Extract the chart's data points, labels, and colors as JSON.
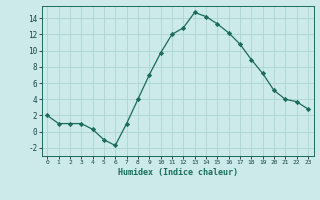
{
  "x": [
    0,
    1,
    2,
    3,
    4,
    5,
    6,
    7,
    8,
    9,
    10,
    11,
    12,
    13,
    14,
    15,
    16,
    17,
    18,
    19,
    20,
    21,
    22,
    23
  ],
  "y": [
    2,
    1,
    1,
    1,
    0.3,
    -1,
    -1.7,
    1,
    4,
    7,
    9.7,
    12,
    12.8,
    14.7,
    14.2,
    13.3,
    12.2,
    10.8,
    8.9,
    7.2,
    5.1,
    4,
    3.7,
    2.8
  ],
  "line_color": "#1a6b5a",
  "marker": "D",
  "marker_size": 2.2,
  "bg_color": "#cceaea",
  "grid_color": "#aed4d4",
  "xlabel": "Humidex (Indice chaleur)",
  "ylim": [
    -3,
    15.5
  ],
  "xlim": [
    -0.5,
    23.5
  ],
  "yticks": [
    -2,
    0,
    2,
    4,
    6,
    8,
    10,
    12,
    14
  ],
  "xticks": [
    0,
    1,
    2,
    3,
    4,
    5,
    6,
    7,
    8,
    9,
    10,
    11,
    12,
    13,
    14,
    15,
    16,
    17,
    18,
    19,
    20,
    21,
    22,
    23
  ]
}
